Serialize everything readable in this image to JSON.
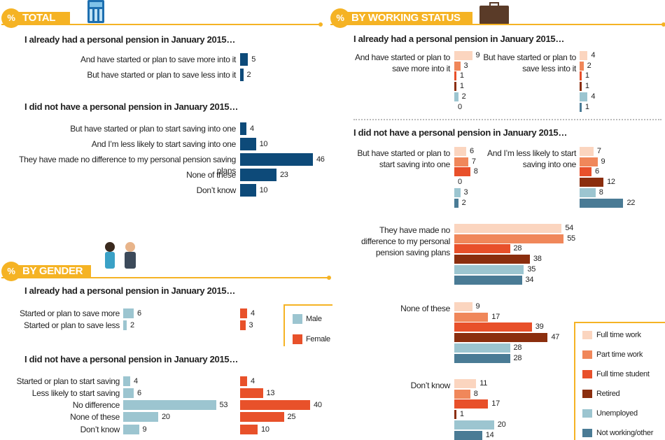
{
  "chart_data": [
    {
      "type": "bar",
      "badge": "%",
      "title": "TOTAL",
      "color": "#0d4a79",
      "groups": [
        {
          "heading": "I already had a personal pension in January 2015…",
          "categories": [
            "And have started or plan to save more into it",
            "But have started or plan to save less into it"
          ],
          "values": [
            5,
            2
          ]
        },
        {
          "heading": "I did not have a personal pension in January 2015…",
          "categories": [
            "But have started or plan to start saving into one",
            "And I’m less likely to start saving into one",
            "They have made no difference to my personal pension saving plans",
            "None of these",
            "Don’t know"
          ],
          "values": [
            4,
            10,
            46,
            23,
            10
          ]
        }
      ]
    },
    {
      "type": "bar",
      "badge": "%",
      "title": "BY GENDER",
      "legend": [
        {
          "name": "Male",
          "color": "#9cc5d0"
        },
        {
          "name": "Female",
          "color": "#e8512a"
        }
      ],
      "groups": [
        {
          "heading": "I already had a personal pension in January 2015…",
          "categories": [
            "Started or plan to save more",
            "Started or plan to save less"
          ],
          "series": [
            {
              "values": [
                6,
                2
              ]
            },
            {
              "values": [
                4,
                3
              ]
            }
          ]
        },
        {
          "heading": "I did not have a personal pension in January 2015…",
          "categories": [
            "Started or plan to start saving",
            "Less likely to start saving",
            "No difference",
            "None of these",
            "Don’t know"
          ],
          "series": [
            {
              "values": [
                4,
                6,
                53,
                20,
                9
              ]
            },
            {
              "values": [
                4,
                13,
                40,
                25,
                10
              ]
            }
          ]
        }
      ]
    },
    {
      "type": "bar",
      "badge": "%",
      "title": "BY WORKING STATUS",
      "legend": [
        {
          "name": "Full time work",
          "color": "#fbd5bf"
        },
        {
          "name": "Part time work",
          "color": "#f0875a"
        },
        {
          "name": "Full time student",
          "color": "#e8502a"
        },
        {
          "name": "Retired",
          "color": "#8b2e0e"
        },
        {
          "name": "Unemployed",
          "color": "#9cc5d0"
        },
        {
          "name": "Not working/other",
          "color": "#4a7b95"
        }
      ],
      "groups": [
        {
          "heading": "I already had a personal pension in January 2015…",
          "categories": [
            "And have started or plan to save more into it",
            "But have started or plan to save less into it"
          ],
          "values": [
            [
              9,
              3,
              1,
              1,
              2,
              0
            ],
            [
              4,
              2,
              1,
              1,
              4,
              1
            ]
          ]
        },
        {
          "heading": "I did not have a personal pension in January 2015…",
          "categories": [
            "But have started or plan to start saving into one",
            "And I’m less likely to start saving into one",
            "They have made no difference to my personal pension saving plans",
            "None of these",
            "Don’t know"
          ],
          "values": [
            [
              6,
              7,
              8,
              0,
              3,
              2
            ],
            [
              7,
              9,
              6,
              12,
              8,
              22
            ],
            [
              54,
              55,
              28,
              38,
              35,
              34
            ],
            [
              9,
              17,
              39,
              47,
              28,
              28
            ],
            [
              11,
              8,
              17,
              1,
              20,
              14
            ]
          ]
        }
      ]
    }
  ]
}
